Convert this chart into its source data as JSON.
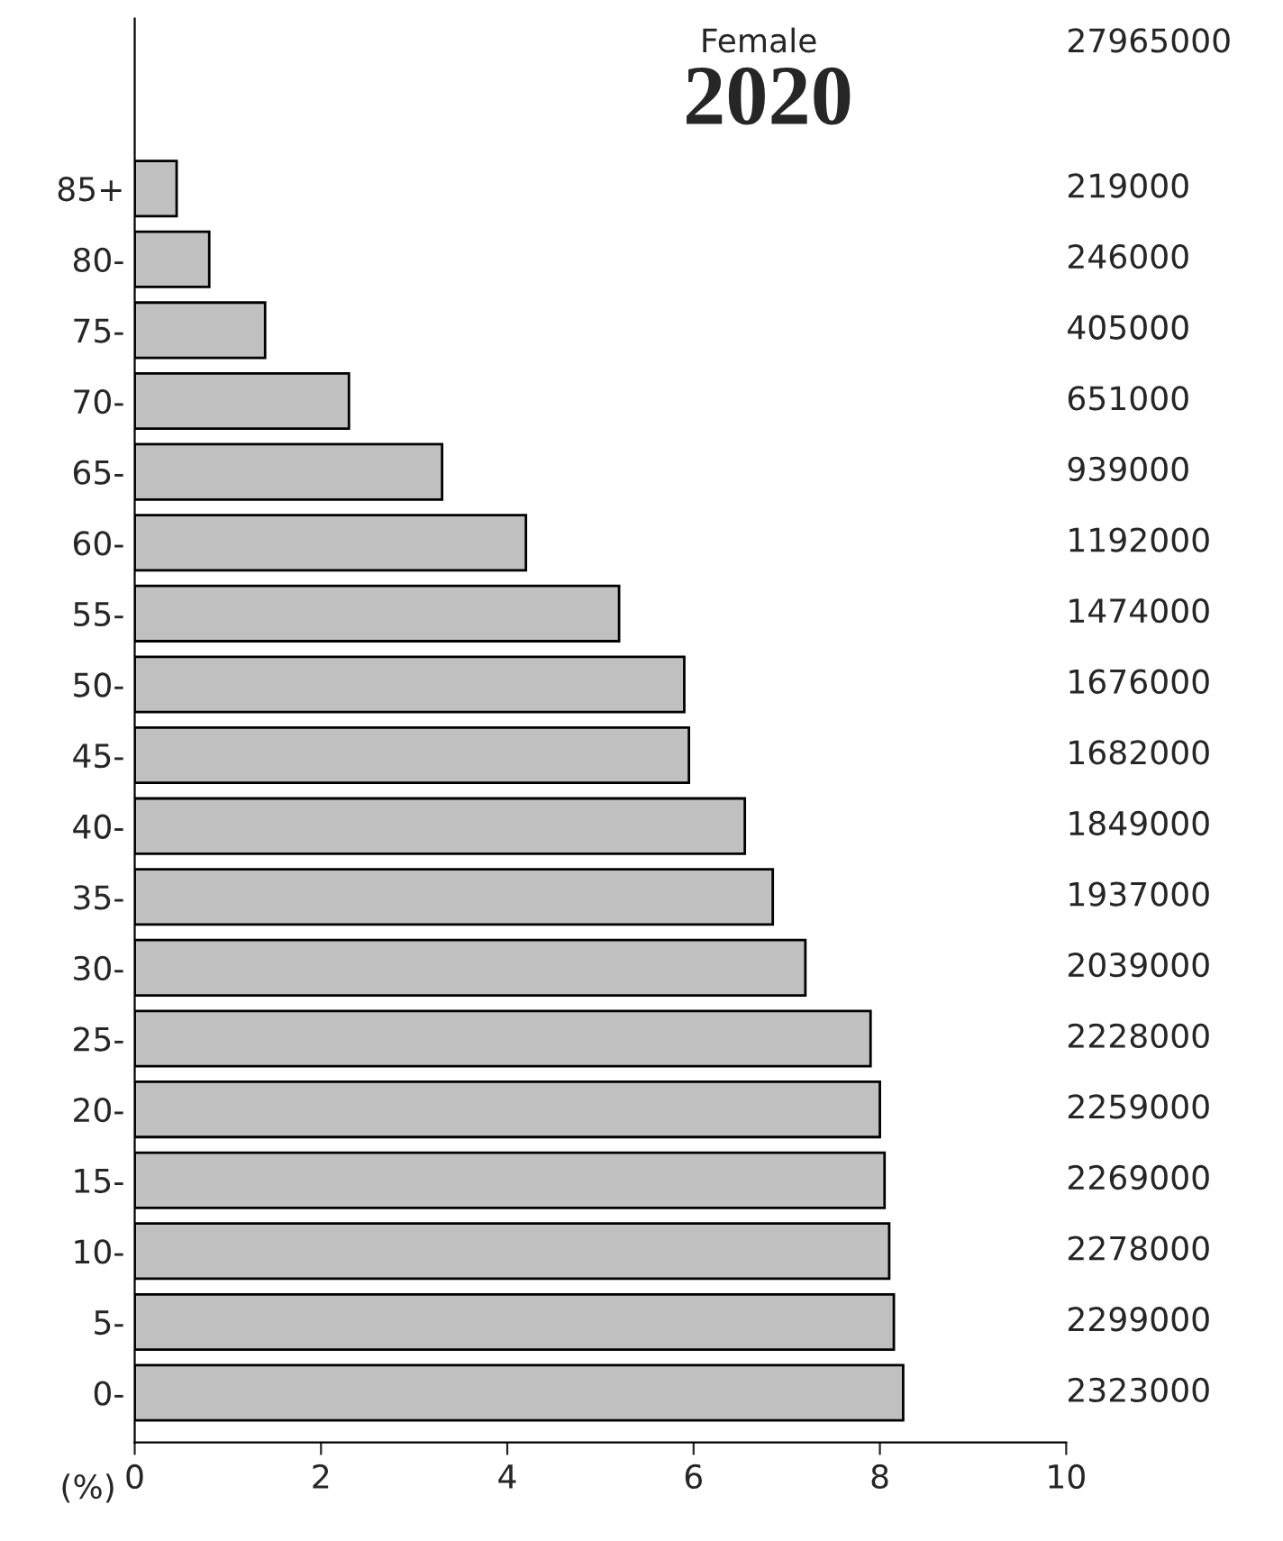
{
  "chart_data": {
    "type": "bar",
    "orientation": "horizontal",
    "title": "2020",
    "xlabel": "(%)",
    "categories": [
      "85+",
      "80-",
      "75-",
      "70-",
      "65-",
      "60-",
      "55-",
      "50-",
      "45-",
      "40-",
      "35-",
      "30-",
      "25-",
      "20-",
      "15-",
      "10-",
      "5-",
      "0-"
    ],
    "values": [
      0.45,
      0.8,
      1.4,
      2.3,
      3.3,
      4.2,
      5.2,
      5.9,
      5.95,
      6.55,
      6.85,
      7.2,
      7.9,
      8.0,
      8.05,
      8.1,
      8.15,
      8.25
    ],
    "color": "#c0c0c0",
    "xlim": [
      0,
      10
    ],
    "xticks": [
      0,
      2,
      4,
      6,
      8,
      10
    ],
    "annotations": [
      "Female",
      "27965000",
      "219000",
      "246000",
      "405000",
      "651000",
      "939000",
      "1192000",
      "1474000",
      "1676000",
      "1682000",
      "1849000",
      "1937000",
      "2039000",
      "2228000",
      "2259000",
      "2269000",
      "2278000",
      "2299000",
      "2323000"
    ]
  }
}
